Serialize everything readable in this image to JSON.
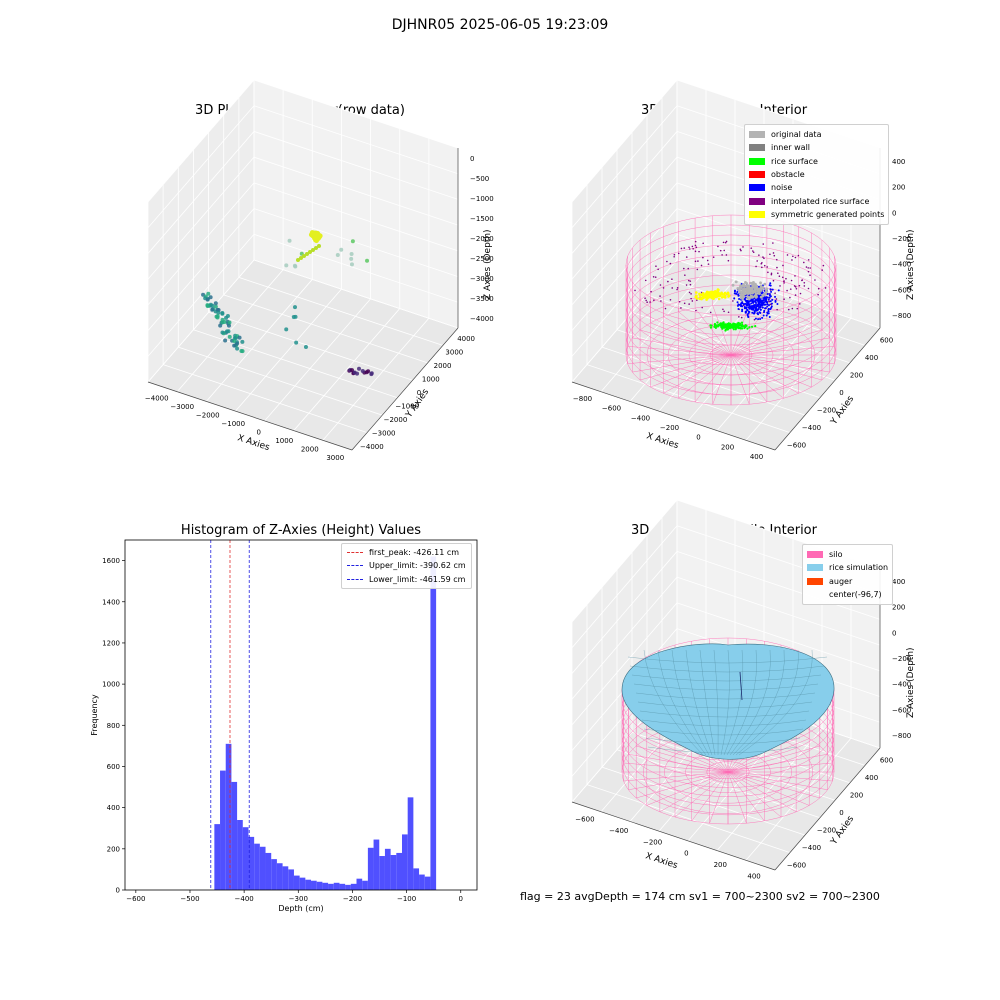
{
  "figure": {
    "suptitle": "DJHNR05 2025-06-05 19:23:09",
    "footer_text": "flag = 23   avgDepth = 174 cm   sv1 = 700~2300   sv2 = 700~2300"
  },
  "chart_data": [
    {
      "type": "scatter",
      "title": "3D Plot of Silo Interior(row data)",
      "xlabel": "X Axies",
      "ylabel": "Y Axies",
      "zlabel": "Z Axies (Depth)",
      "x_ticks": [
        "−4000",
        "−3000",
        "−2000",
        "−1000",
        "0",
        "1000",
        "2000",
        "3000"
      ],
      "y_ticks": [
        "−4000",
        "−3000",
        "−2000",
        "−1000",
        "0",
        "1000",
        "2000",
        "3000",
        "4000"
      ],
      "z_ticks": [
        "0",
        "−500",
        "−1000",
        "−1500",
        "−2000",
        "−2500",
        "−3000",
        "−3500",
        "−4000"
      ],
      "colormap": "viridis (by depth)"
    },
    {
      "type": "scatter",
      "title": "3D classify of Silo Interior",
      "xlabel": "X Axies",
      "ylabel": "Y Axies",
      "zlabel": "Z Axies (Depth)",
      "x_ticks": [
        "−800",
        "−600",
        "−400",
        "−200",
        "0",
        "200",
        "400"
      ],
      "y_ticks": [
        "−600",
        "−400",
        "−200",
        "0",
        "200",
        "400",
        "600"
      ],
      "z_ticks": [
        "400",
        "200",
        "0",
        "−200",
        "−400",
        "−600",
        "−800"
      ],
      "legend": [
        {
          "label": "original data",
          "color": "#b3b3b3"
        },
        {
          "label": "inner wall",
          "color": "#808080"
        },
        {
          "label": "rice surface",
          "color": "#00ff00"
        },
        {
          "label": "obstacle",
          "color": "#ff0000"
        },
        {
          "label": "noise",
          "color": "#0000ff"
        },
        {
          "label": "interpolated rice surface",
          "color": "#800080"
        },
        {
          "label": "symmetric generated points",
          "color": "#ffff00"
        }
      ],
      "legend_position": "top-right"
    },
    {
      "type": "bar",
      "title": "Histogram of Z-Axies (Height) Values",
      "xlabel": "Depth (cm)",
      "ylabel": "Frequency",
      "xlim": [
        -620,
        30
      ],
      "ylim": [
        0,
        1700
      ],
      "x_ticks": [
        -600,
        -500,
        -400,
        -300,
        -200,
        -100,
        0
      ],
      "y_ticks": [
        0,
        200,
        400,
        600,
        800,
        1000,
        1200,
        1400,
        1600
      ],
      "bin_width": 10.5,
      "bin_start": -455,
      "values": [
        320,
        580,
        710,
        525,
        340,
        305,
        258,
        225,
        210,
        180,
        150,
        130,
        115,
        100,
        70,
        60,
        50,
        45,
        40,
        35,
        30,
        35,
        30,
        25,
        30,
        55,
        45,
        205,
        245,
        165,
        200,
        170,
        180,
        270,
        450,
        105,
        75,
        65,
        1620
      ],
      "bar_color": "#5050ff",
      "lines": [
        {
          "label": "first_peak: -426.11 cm",
          "x": -426.11,
          "color": "#e03030"
        },
        {
          "label": "Upper_limit: -390.62 cm",
          "x": -390.62,
          "color": "#2020e0"
        },
        {
          "label": "Lower_limit: -461.59 cm",
          "x": -461.59,
          "color": "#2020e0"
        }
      ],
      "legend_position": "top-right"
    },
    {
      "type": "area",
      "title": "3D simulation of Silo Interior",
      "xlabel": "X Axies",
      "ylabel": "Y Axies",
      "zlabel": "Z Axies (Depth)",
      "x_ticks": [
        "−600",
        "−400",
        "−200",
        "0",
        "200",
        "400"
      ],
      "y_ticks": [
        "−600",
        "−400",
        "−200",
        "0",
        "200",
        "400",
        "600"
      ],
      "z_ticks": [
        "400",
        "200",
        "0",
        "−200",
        "−400",
        "−600",
        "−800"
      ],
      "legend": [
        {
          "label": "silo",
          "color": "#ff69b4"
        },
        {
          "label": "rice simulation",
          "color": "#87ceeb"
        },
        {
          "label": "auger",
          "color": "#ff4500"
        },
        {
          "label": "center(-96,7)",
          "color": "none"
        }
      ],
      "legend_position": "top-right"
    }
  ]
}
